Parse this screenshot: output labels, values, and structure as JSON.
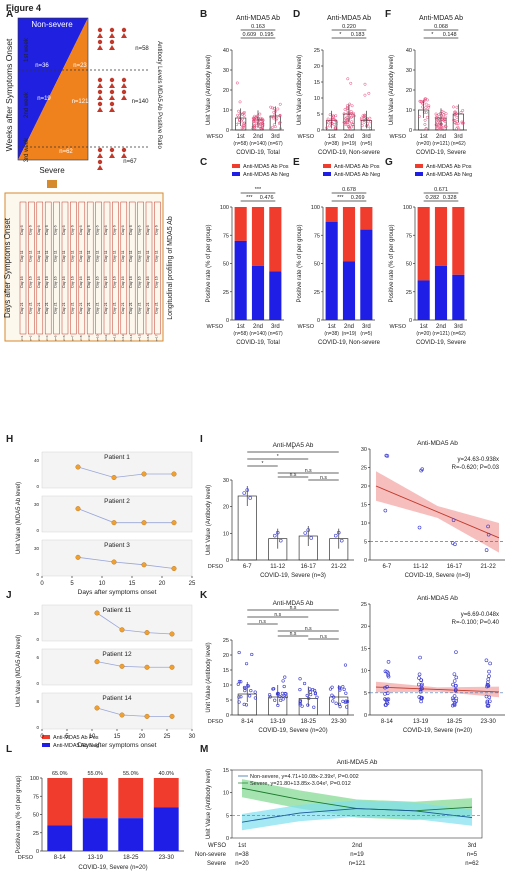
{
  "figure_title": "Figure 4",
  "panel_letters": [
    "A",
    "B",
    "C",
    "D",
    "E",
    "F",
    "G",
    "H",
    "I",
    "J",
    "K",
    "L",
    "M"
  ],
  "panelA": {
    "nonsevere_label": "Non-severe",
    "severe_label": "Severe",
    "week_labels": [
      "1st week",
      "2nd week",
      "3rd week"
    ],
    "yaxis_title": "Weeks after Symptoms Onset",
    "right_title": "Antibody Levels  MDA5 Ab Positive Ratio",
    "n_left": [
      "n=36",
      "n=19",
      "n=62"
    ],
    "n_right": [
      "n=58",
      "n=140",
      "n=67"
    ],
    "n_extra": "n=121",
    "n_mid": "n=23",
    "long_title": "Days after Symptoms Onset",
    "long_side": "Longitudinal profiling of MDA5 Ab"
  },
  "common": {
    "ylabel_unit": "Unit Value (Antibody level)",
    "ylabel_rate": "Positive rate (% of per group)",
    "wfso": "WFSO",
    "dfso": "DFSO",
    "legend_pos": "Anti-MDA5 Ab Pos",
    "legend_neg": "Anti-MDA5 Ab Neg",
    "title_ab": "Anti-MDA5 Ab",
    "colors": {
      "pos": "#f03c2d",
      "neg": "#1e1ee6",
      "pink": "#e8477a",
      "blue": "#3a3ad0",
      "green": "#2fb34a"
    }
  },
  "chart_data": [
    {
      "panel": "B",
      "type": "scatter",
      "title": "Anti-MDA5 Ab",
      "categories": [
        "1st",
        "2nd",
        "3rd"
      ],
      "n": [
        "(n=58)",
        "(n=140)",
        "(n=67)"
      ],
      "means": [
        6,
        5,
        7
      ],
      "ylim": [
        0,
        40
      ],
      "yticks": [
        "0",
        "10",
        "20",
        "30",
        "40"
      ],
      "xlabel": "COVID-19, Total",
      "pvals": [
        "0.163",
        "0.609",
        "0.195"
      ]
    },
    {
      "panel": "D",
      "type": "scatter",
      "title": "Anti-MDA5 Ab",
      "categories": [
        "1st",
        "2nd",
        "3rd"
      ],
      "n": [
        "(n=38)",
        "(n=19)",
        "(n=5)"
      ],
      "means": [
        3,
        5,
        3
      ],
      "ylim": [
        0,
        25
      ],
      "yticks": [
        "0",
        "5",
        "10",
        "15",
        "20",
        "25"
      ],
      "xlabel": "COVID-19, Non-severe",
      "pvals": [
        "0.220",
        "*",
        "0.183"
      ]
    },
    {
      "panel": "F",
      "type": "scatter",
      "title": "Anti-MDA5 Ab",
      "categories": [
        "1st",
        "2nd",
        "3rd"
      ],
      "n": [
        "(n=20)",
        "(n=121)",
        "(n=62)"
      ],
      "means": [
        10,
        6,
        8
      ],
      "ylim": [
        0,
        40
      ],
      "yticks": [
        "0",
        "10",
        "20",
        "30",
        "40"
      ],
      "xlabel": "COVID-19, Severe",
      "pvals": [
        "0.068",
        "*",
        "0.148"
      ]
    },
    {
      "panel": "C",
      "type": "bar",
      "stacked": true,
      "categories": [
        "1st",
        "2nd",
        "3rd"
      ],
      "n": [
        "(n=58)",
        "(n=140)",
        "(n=67)"
      ],
      "neg": [
        70,
        48,
        43
      ],
      "ylim": [
        0,
        100
      ],
      "yticks": [
        "0",
        "25",
        "50",
        "75",
        "100"
      ],
      "xlabel": "COVID-19, Total",
      "pvals": [
        "***",
        "***",
        "0.476"
      ]
    },
    {
      "panel": "E",
      "type": "bar",
      "stacked": true,
      "categories": [
        "1st",
        "2nd",
        "3rd"
      ],
      "n": [
        "(n=38)",
        "(n=19)",
        "(n=5)"
      ],
      "neg": [
        87,
        52,
        80
      ],
      "ylim": [
        0,
        100
      ],
      "yticks": [
        "0",
        "25",
        "50",
        "75",
        "100"
      ],
      "xlabel": "COVID-19, Non-severe",
      "pvals": [
        "0.678",
        "***",
        "0.269"
      ]
    },
    {
      "panel": "G",
      "type": "bar",
      "stacked": true,
      "categories": [
        "1st",
        "2nd",
        "3rd"
      ],
      "n": [
        "(n=20)",
        "(n=121)",
        "(n=62)"
      ],
      "neg": [
        35,
        48,
        40
      ],
      "ylim": [
        0,
        100
      ],
      "yticks": [
        "0",
        "25",
        "50",
        "75",
        "100"
      ],
      "xlabel": "COVID-19, Severe",
      "pvals": [
        "0.671",
        "0.282",
        "0.328"
      ]
    },
    {
      "panel": "H",
      "type": "line",
      "xlabel": "Days after symptoms onset",
      "ylabel": "Unit Value (MDA5 Ab level)",
      "xticks": [
        "0",
        "5",
        "10",
        "15",
        "20",
        "25"
      ],
      "patients": [
        {
          "name": "Patient 1",
          "x": [
            6,
            12,
            17,
            22
          ],
          "y": [
            30,
            15,
            20,
            20
          ],
          "ymax": 40
        },
        {
          "name": "Patient 2",
          "x": [
            6,
            12,
            17,
            22
          ],
          "y": [
            25,
            10,
            10,
            10
          ],
          "ymax": 30
        },
        {
          "name": "Patient 3",
          "x": [
            6,
            12,
            17,
            22
          ],
          "y": [
            20,
            15,
            12,
            8
          ],
          "ymax": 30
        }
      ]
    },
    {
      "panel": "I",
      "type": "bar",
      "title": "Anti-MDA5 Ab",
      "categories": [
        "6-7",
        "11-12",
        "16-17",
        "21-22"
      ],
      "values": [
        24,
        8,
        9,
        8
      ],
      "ylim": [
        0,
        30
      ],
      "yticks": [
        "0",
        "10",
        "20",
        "30"
      ],
      "xlabel": "COVID-19, Severe (n=3)",
      "pvals": [
        "*",
        "*",
        "*",
        "n.s",
        "n.s",
        "n.s"
      ]
    },
    {
      "panel": "I2",
      "type": "scatter",
      "title": "Anti-MDA5 Ab",
      "categories": [
        "6-7",
        "11-12",
        "16-17",
        "21-22"
      ],
      "equation": "y=24.63-0.938x",
      "stat": "R=-0.620; P=0.03",
      "ylim": [
        0,
        30
      ],
      "yticks": [
        "0",
        "5",
        "10",
        "15",
        "20",
        "25",
        "30"
      ],
      "xlabel": "COVID-19, Severe (n=3)"
    },
    {
      "panel": "J",
      "type": "line",
      "xlabel": "Days after symptoms onset",
      "xticks": [
        "0",
        "5",
        "10",
        "15",
        "20",
        "25",
        "30"
      ],
      "patients": [
        {
          "name": "Patient 11",
          "x": [
            11,
            16,
            21,
            26
          ],
          "y": [
            20,
            8,
            6,
            5
          ],
          "ymax": 20
        },
        {
          "name": "Patient 12",
          "x": [
            11,
            16,
            21,
            26
          ],
          "y": [
            5,
            4,
            3.8,
            3.8
          ],
          "ymax": 6
        },
        {
          "name": "Patient 14",
          "x": [
            11,
            16,
            21,
            26
          ],
          "y": [
            6,
            4,
            3.6,
            3.6
          ],
          "ymax": 8
        }
      ]
    },
    {
      "panel": "K",
      "type": "scatter",
      "title": "Anti-MDA5 Ab",
      "categories": [
        "8-14",
        "13-19",
        "18-25",
        "23-30"
      ],
      "means": [
        7,
        6,
        5.5,
        6
      ],
      "ylim": [
        0,
        25
      ],
      "yticks": [
        "0",
        "5",
        "10",
        "15",
        "20",
        "25"
      ],
      "xlabel": "COVID-19, Severe (n=20)",
      "pvals": [
        "n.s",
        "n.s",
        "n.s",
        "n.s",
        "n.s",
        "n.s"
      ]
    },
    {
      "panel": "K2",
      "type": "scatter",
      "title": "Anti-MDA5 Ab",
      "categories": [
        "8-14",
        "13-19",
        "18-25",
        "23-30"
      ],
      "equation": "y=6.69-0.048x",
      "stat": "R=-0.100; P=0.40",
      "ylim": [
        0,
        25
      ],
      "yticks": [
        "0",
        "5",
        "10",
        "15",
        "20",
        "25"
      ],
      "xlabel": "COVID-19, Severe (n=20)"
    },
    {
      "panel": "L",
      "type": "bar",
      "stacked": true,
      "categories": [
        "8-14",
        "13-19",
        "18-25",
        "23-30"
      ],
      "neg": [
        35,
        45,
        45,
        60
      ],
      "pct": [
        "65.0%",
        "55.0%",
        "55.0%",
        "40.0%"
      ],
      "ylim": [
        0,
        100
      ],
      "yticks": [
        "0",
        "25",
        "50",
        "75",
        "100"
      ],
      "xlabel": "COVID-19, Severe (n=20)"
    },
    {
      "panel": "M",
      "type": "line",
      "title": "Anti-MDA5 Ab",
      "categories": [
        "1st",
        "2nd",
        "3rd"
      ],
      "ylim": [
        0,
        15
      ],
      "yticks": [
        "0",
        "5",
        "10",
        "15"
      ],
      "series": [
        {
          "name": "Non-severe, y=4.71+10.08x-2.39x², P=0.002"
        },
        {
          "name": "Severe, y=21.80+13.85x-3.04x², P=0.012"
        }
      ],
      "nonsevere_n": [
        "n=38",
        "n=19",
        "n=5"
      ],
      "severe_n": [
        "n=20",
        "n=121",
        "n=62"
      ],
      "row_labels": [
        "WFSO",
        "Non-severe",
        "Severe"
      ]
    }
  ]
}
